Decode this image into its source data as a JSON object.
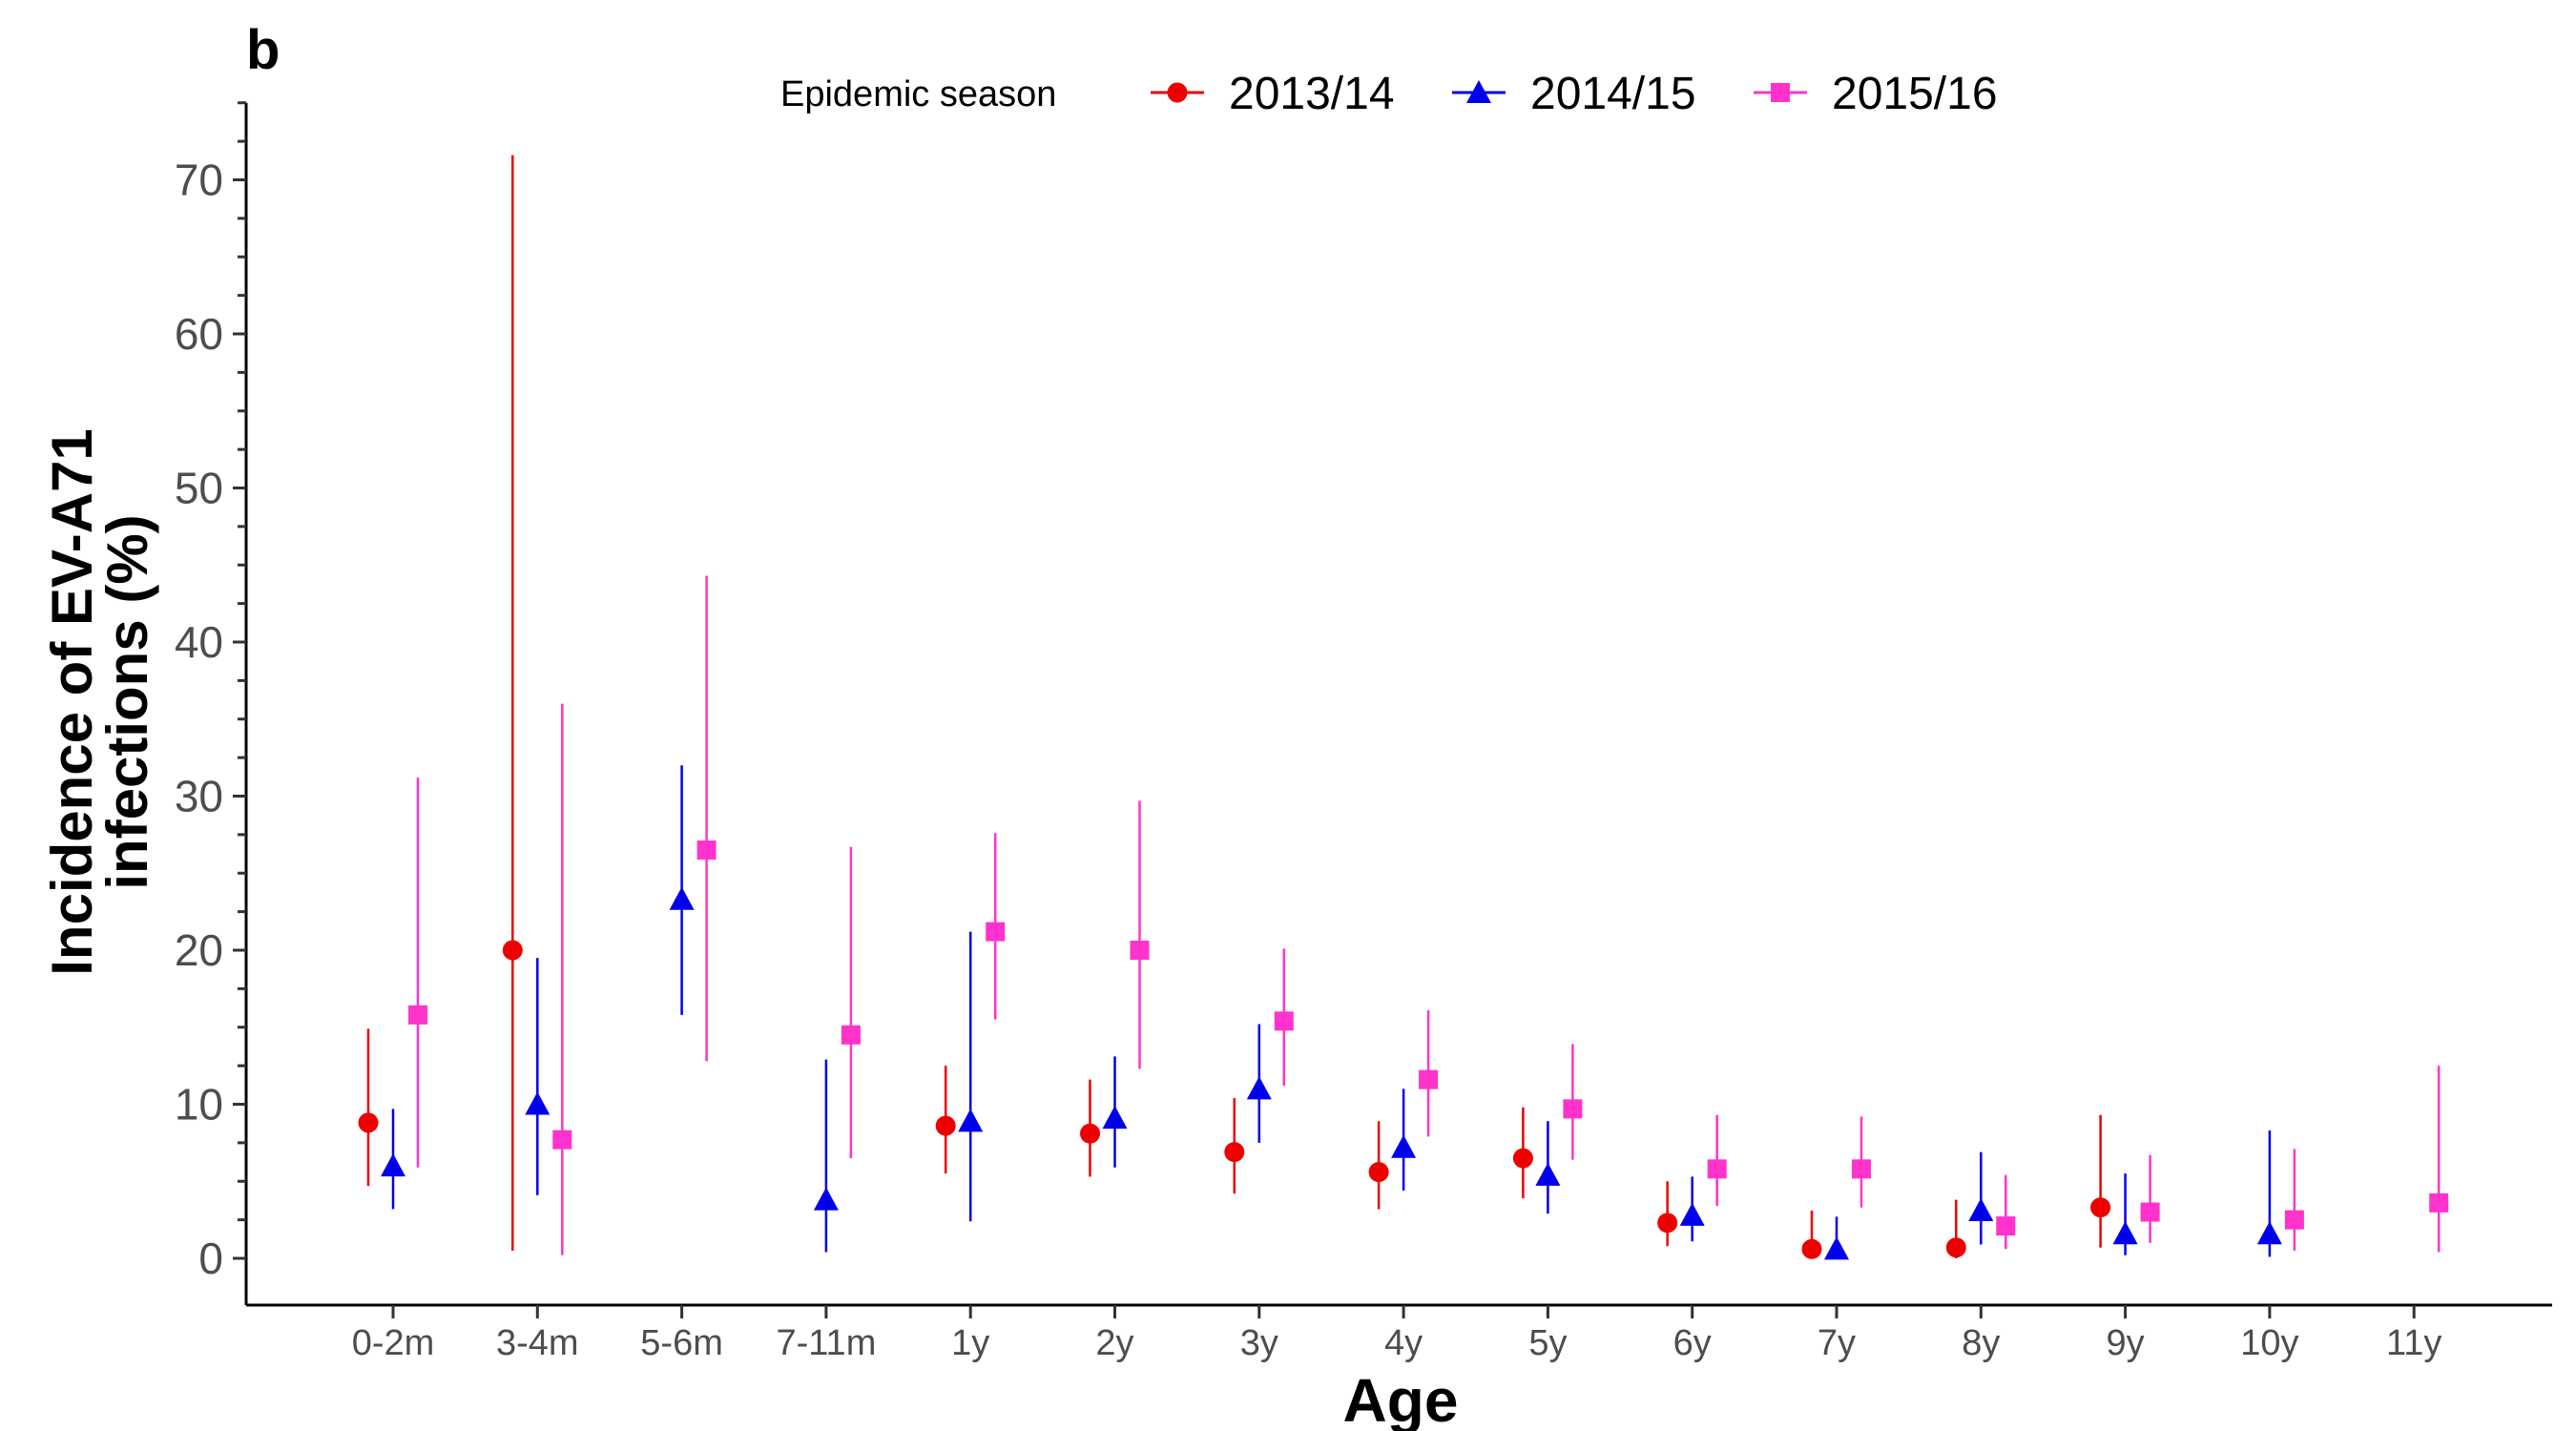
{
  "panel_label": "b",
  "chart_data": {
    "type": "scatter",
    "xlabel": "Age",
    "ylabel_lines": [
      "Incidence of EV-A71",
      "infections (%)"
    ],
    "ylim": [
      0,
      75
    ],
    "yticks": [
      0,
      10,
      20,
      30,
      40,
      50,
      60,
      70
    ],
    "categories": [
      "0-2m",
      "3-4m",
      "5-6m",
      "7-11m",
      "1y",
      "2y",
      "3y",
      "4y",
      "5y",
      "6y",
      "7y",
      "8y",
      "9y",
      "10y",
      "11y"
    ],
    "legend": {
      "title": "Epidemic season",
      "position": "top"
    },
    "grid": false,
    "series": [
      {
        "name": "2013/14",
        "color": "#ee0000",
        "marker": "circle",
        "points": [
          {
            "category": "0-2m",
            "value": 8.8,
            "lower": 4.7,
            "upper": 14.9
          },
          {
            "category": "3-4m",
            "value": 20.0,
            "lower": 0.5,
            "upper": 71.6
          },
          {
            "category": "1y",
            "value": 8.6,
            "lower": 5.5,
            "upper": 12.5
          },
          {
            "category": "2y",
            "value": 8.1,
            "lower": 5.3,
            "upper": 11.6
          },
          {
            "category": "3y",
            "value": 6.9,
            "lower": 4.2,
            "upper": 10.4
          },
          {
            "category": "4y",
            "value": 5.6,
            "lower": 3.2,
            "upper": 8.9
          },
          {
            "category": "5y",
            "value": 6.5,
            "lower": 3.9,
            "upper": 9.8
          },
          {
            "category": "6y",
            "value": 2.3,
            "lower": 0.8,
            "upper": 5.0
          },
          {
            "category": "7y",
            "value": 0.6,
            "lower": 0.0,
            "upper": 3.1
          },
          {
            "category": "8y",
            "value": 0.7,
            "lower": 0.0,
            "upper": 3.8
          },
          {
            "category": "9y",
            "value": 3.3,
            "lower": 0.7,
            "upper": 9.3
          }
        ]
      },
      {
        "name": "2014/15",
        "color": "#0000ee",
        "marker": "triangle",
        "points": [
          {
            "category": "0-2m",
            "value": 6.0,
            "lower": 3.2,
            "upper": 9.7
          },
          {
            "category": "3-4m",
            "value": 10.0,
            "lower": 4.1,
            "upper": 19.5
          },
          {
            "category": "5-6m",
            "value": 23.3,
            "lower": 15.8,
            "upper": 32.0
          },
          {
            "category": "7-11m",
            "value": 3.8,
            "lower": 0.4,
            "upper": 12.9
          },
          {
            "category": "1y",
            "value": 8.9,
            "lower": 2.4,
            "upper": 21.2
          },
          {
            "category": "2y",
            "value": 9.1,
            "lower": 5.9,
            "upper": 13.1
          },
          {
            "category": "3y",
            "value": 11.0,
            "lower": 7.5,
            "upper": 15.2
          },
          {
            "category": "4y",
            "value": 7.2,
            "lower": 4.4,
            "upper": 11.0
          },
          {
            "category": "5y",
            "value": 5.4,
            "lower": 2.9,
            "upper": 8.9
          },
          {
            "category": "6y",
            "value": 2.8,
            "lower": 1.1,
            "upper": 5.3
          },
          {
            "category": "7y",
            "value": 0.6,
            "lower": 0.0,
            "upper": 2.7
          },
          {
            "category": "8y",
            "value": 3.1,
            "lower": 0.9,
            "upper": 6.9
          },
          {
            "category": "9y",
            "value": 1.6,
            "lower": 0.2,
            "upper": 5.5
          },
          {
            "category": "10y",
            "value": 1.6,
            "lower": 0.1,
            "upper": 8.3
          }
        ]
      },
      {
        "name": "2015/16",
        "color": "#ff33cc",
        "marker": "square",
        "points": [
          {
            "category": "0-2m",
            "value": 15.8,
            "lower": 5.9,
            "upper": 31.2
          },
          {
            "category": "3-4m",
            "value": 7.7,
            "lower": 0.2,
            "upper": 36.0
          },
          {
            "category": "5-6m",
            "value": 26.5,
            "lower": 12.8,
            "upper": 44.3
          },
          {
            "category": "7-11m",
            "value": 14.5,
            "lower": 6.5,
            "upper": 26.7
          },
          {
            "category": "1y",
            "value": 21.2,
            "lower": 15.5,
            "upper": 27.6
          },
          {
            "category": "2y",
            "value": 20.0,
            "lower": 12.3,
            "upper": 29.7
          },
          {
            "category": "3y",
            "value": 15.4,
            "lower": 11.2,
            "upper": 20.1
          },
          {
            "category": "4y",
            "value": 11.6,
            "lower": 7.9,
            "upper": 16.1
          },
          {
            "category": "5y",
            "value": 9.7,
            "lower": 6.4,
            "upper": 13.9
          },
          {
            "category": "6y",
            "value": 5.8,
            "lower": 3.4,
            "upper": 9.3
          },
          {
            "category": "7y",
            "value": 5.8,
            "lower": 3.3,
            "upper": 9.2
          },
          {
            "category": "8y",
            "value": 2.1,
            "lower": 0.6,
            "upper": 5.4
          },
          {
            "category": "9y",
            "value": 3.0,
            "lower": 1.0,
            "upper": 6.7
          },
          {
            "category": "10y",
            "value": 2.5,
            "lower": 0.5,
            "upper": 7.1
          },
          {
            "category": "11y",
            "value": 3.6,
            "lower": 0.4,
            "upper": 12.5
          }
        ]
      }
    ]
  }
}
